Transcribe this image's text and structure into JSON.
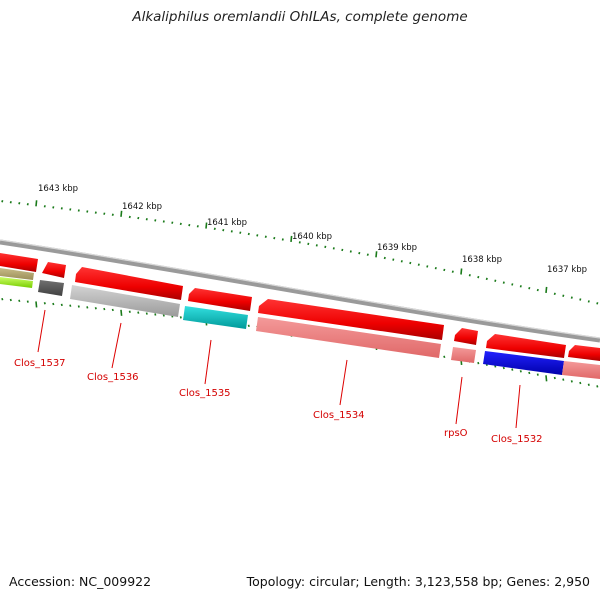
{
  "title": "Alkaliphilus oremlandii OhILAs, complete genome",
  "footer": {
    "accession": "Accession: NC_009922",
    "summary": "Topology: circular; Length: 3,123,558 bp; Genes: 2,950"
  },
  "kbp_labels": [
    "1643 kbp",
    "1642 kbp",
    "1641 kbp",
    "1640 kbp",
    "1639 kbp",
    "1638 kbp",
    "1637 kbp"
  ],
  "genes": [
    {
      "name": "Clos_1537",
      "color": "#dd0000"
    },
    {
      "name": "Clos_1536",
      "color": "#dd0000"
    },
    {
      "name": "Clos_1535",
      "color": "#dd0000"
    },
    {
      "name": "Clos_1534",
      "color": "#dd0000"
    },
    {
      "name": "rpsO",
      "color": "#dd0000"
    },
    {
      "name": "Clos_1532",
      "color": "#dd0000"
    }
  ],
  "colors": {
    "backbone": "#888888",
    "ticks": "#1a7a1a",
    "cds": "#ff0000",
    "rna": "#f08080",
    "gray": "#c0c0c0",
    "darkgray": "#555555",
    "cyan": "#00cccc",
    "blue": "#0000ee",
    "olive": "#b5a86e",
    "lime": "#99ee22"
  }
}
